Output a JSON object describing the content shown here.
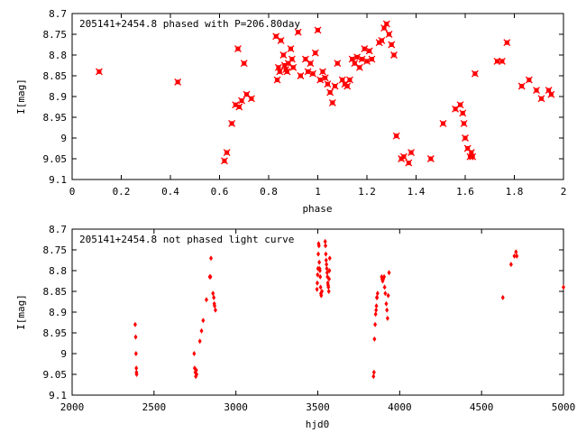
{
  "chart_data": [
    {
      "type": "scatter",
      "title": "205141+2454.8 phased with P=206.80day",
      "xlabel": "phase",
      "ylabel": "I[mag]",
      "xlim": [
        0,
        2
      ],
      "ylim": [
        9.1,
        8.7
      ],
      "y_inverted": true,
      "x_ticks": [
        0,
        0.2,
        0.4,
        0.6,
        0.8,
        1,
        1.2,
        1.4,
        1.6,
        1.8,
        2
      ],
      "x_tick_labels": [
        "0",
        "0.2",
        "0.4",
        "0.6",
        "0.8",
        "1",
        "1.2",
        "1.4",
        "1.6",
        "1.8",
        "2"
      ],
      "y_ticks": [
        8.7,
        8.75,
        8.8,
        8.85,
        8.9,
        8.95,
        9,
        9.05,
        9.1
      ],
      "y_tick_labels": [
        "8.7",
        "8.75",
        "8.8",
        "8.85",
        "8.9",
        "8.95",
        "9",
        "9.05",
        "9.1"
      ],
      "grid": false,
      "marker_color": "#ff0000",
      "series": [
        {
          "x": [
            0.11,
            0.43,
            0.62,
            0.63,
            0.65,
            0.665,
            0.675,
            0.68,
            0.69,
            0.7,
            0.71,
            0.73,
            0.83,
            0.835,
            0.84,
            0.845,
            0.85,
            0.86,
            0.865,
            0.87,
            0.875,
            0.88,
            0.89,
            0.895,
            0.9,
            0.92,
            0.93,
            0.95,
            0.96,
            0.97,
            0.98,
            0.99,
            1.0,
            1.01,
            1.02,
            1.03,
            1.04,
            1.05,
            1.06,
            1.07,
            1.08,
            1.1,
            1.11,
            1.12,
            1.13,
            1.14,
            1.15,
            1.16,
            1.17,
            1.18,
            1.19,
            1.2,
            1.21,
            1.22,
            1.25,
            1.26,
            1.27,
            1.28,
            1.29,
            1.3,
            1.31,
            1.32,
            1.34,
            1.35,
            1.37,
            1.38,
            1.46,
            1.51,
            1.56,
            1.58,
            1.59,
            1.595,
            1.6,
            1.61,
            1.62,
            1.625,
            1.63,
            1.64,
            1.73,
            1.75,
            1.77,
            1.83,
            1.86,
            1.89,
            1.91,
            1.94,
            1.95
          ],
          "y": [
            8.84,
            8.865,
            9.055,
            9.035,
            8.965,
            8.92,
            8.785,
            8.925,
            8.91,
            8.82,
            8.895,
            8.905,
            8.755,
            8.86,
            8.83,
            8.84,
            8.765,
            8.8,
            8.825,
            8.835,
            8.84,
            8.82,
            8.785,
            8.81,
            8.83,
            8.745,
            8.85,
            8.81,
            8.84,
            8.82,
            8.845,
            8.795,
            8.74,
            8.86,
            8.84,
            8.855,
            8.87,
            8.89,
            8.915,
            8.875,
            8.82,
            8.86,
            8.87,
            8.875,
            8.86,
            8.81,
            8.82,
            8.805,
            8.83,
            8.81,
            8.785,
            8.815,
            8.79,
            8.81,
            8.77,
            8.765,
            8.735,
            8.725,
            8.75,
            8.775,
            8.8,
            8.995,
            9.05,
            9.045,
            9.06,
            9.035,
            9.05,
            8.965,
            8.93,
            8.92,
            8.94,
            8.965,
            9.0,
            9.025,
            9.045,
            9.035,
            9.045,
            8.845,
            8.815,
            8.815,
            8.77,
            8.875,
            8.86,
            8.885,
            8.905,
            8.885,
            8.895
          ]
        }
      ]
    },
    {
      "type": "scatter",
      "title": "205141+2454.8 not phased light curve",
      "xlabel": "hjd0",
      "ylabel": "I[mag]",
      "xlim": [
        2000,
        5000
      ],
      "ylim": [
        9.1,
        8.7
      ],
      "y_inverted": true,
      "x_ticks": [
        2000,
        2500,
        3000,
        3500,
        4000,
        4500,
        5000
      ],
      "x_tick_labels": [
        "2000",
        "2500",
        "3000",
        "3500",
        "4000",
        "4500",
        "5000"
      ],
      "y_ticks": [
        8.7,
        8.75,
        8.8,
        8.85,
        8.9,
        8.95,
        9,
        9.05,
        9.1
      ],
      "y_tick_labels": [
        "8.7",
        "8.75",
        "8.8",
        "8.85",
        "8.9",
        "8.95",
        "9",
        "9.05",
        "9.1"
      ],
      "grid": false,
      "marker_color": "#ff0000",
      "series": [
        {
          "x": [
            2385,
            2388,
            2390,
            2392,
            2393,
            2394,
            2745,
            2748,
            2752,
            2755,
            2758,
            2760,
            2780,
            2790,
            2800,
            2820,
            2840,
            2845,
            2848,
            2860,
            2865,
            2868,
            2870,
            2875,
            3495,
            3497,
            3499,
            3501,
            3503,
            3505,
            3507,
            3509,
            3511,
            3513,
            3515,
            3517,
            3519,
            3521,
            3525,
            3545,
            3547,
            3549,
            3551,
            3553,
            3555,
            3557,
            3559,
            3561,
            3563,
            3565,
            3567,
            3569,
            3571,
            3573,
            3840,
            3843,
            3846,
            3850,
            3853,
            3856,
            3858,
            3860,
            3862,
            3865,
            3890,
            3893,
            3896,
            3900,
            3905,
            3908,
            3912,
            3918,
            3922,
            3926,
            3930,
            3935,
            4630,
            4680,
            4700,
            4710,
            4715,
            5000
          ],
          "y": [
            8.93,
            8.96,
            9.0,
            9.035,
            9.045,
            9.05,
            9.0,
            9.035,
            9.045,
            9.055,
            9.04,
            9.05,
            8.97,
            8.945,
            8.92,
            8.87,
            8.815,
            8.815,
            8.77,
            8.855,
            8.865,
            8.88,
            8.885,
            8.895,
            8.845,
            8.83,
            8.81,
            8.795,
            8.76,
            8.735,
            8.74,
            8.78,
            8.795,
            8.8,
            8.815,
            8.84,
            8.855,
            8.86,
            8.85,
            8.73,
            8.74,
            8.76,
            8.775,
            8.785,
            8.795,
            8.805,
            8.815,
            8.83,
            8.835,
            8.84,
            8.85,
            8.82,
            8.8,
            8.77,
            9.055,
            9.045,
            8.965,
            8.93,
            8.905,
            8.895,
            8.885,
            8.865,
            8.865,
            8.855,
            8.815,
            8.82,
            8.825,
            8.82,
            8.815,
            8.84,
            8.855,
            8.88,
            8.895,
            8.915,
            8.86,
            8.805,
            8.865,
            8.785,
            8.765,
            8.755,
            8.765,
            8.84
          ]
        }
      ]
    }
  ]
}
